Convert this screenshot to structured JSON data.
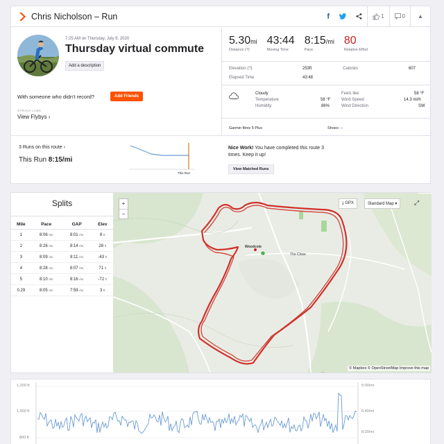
{
  "header": {
    "athlete_activity": "Chris Nicholson – Run",
    "like_count": "1",
    "comment_count": "0"
  },
  "activity": {
    "timestamp": "7:25 AM on Thursday, July 9, 2020",
    "title": "Thursday virtual commute",
    "add_description_label": "Add a description",
    "with_someone_text": "With someone who didn't record?",
    "add_friends_label": "Add Friends",
    "strava_labs": "STRAVA LABS",
    "view_flybys": "View Flybys"
  },
  "stats": {
    "distance": {
      "value": "5.30",
      "unit": "mi",
      "label": "Distance (?)"
    },
    "moving_time": {
      "value": "43:44",
      "label": "Moving Time"
    },
    "pace": {
      "value": "8:15",
      "unit": "/mi",
      "label": "Pace"
    },
    "relative_effort": {
      "value": "80",
      "label": "Relative Effort"
    },
    "elevation_label": "Elevation (?)",
    "elevation_value": "253ft",
    "calories_label": "Calories",
    "calories_value": "607",
    "elapsed_label": "Elapsed Time",
    "elapsed_value": "43:48"
  },
  "weather": {
    "condition": "Cloudy",
    "temperature_label": "Temperature",
    "temperature_value": "58 °F",
    "humidity_label": "Humidity",
    "humidity_value": "86%",
    "feels_like_label": "Feels like",
    "feels_like_value": "58 °F",
    "wind_speed_label": "Wind Speed",
    "wind_speed_value": "14.3 mi/h",
    "wind_direction_label": "Wind Direction",
    "wind_direction_value": "SW"
  },
  "gear": {
    "device": "Garmin fēnix 5 Plus",
    "shoes": "Shoes: --"
  },
  "route": {
    "runs_on_route": "3 Runs on this route",
    "this_run_label": "This Run",
    "this_run_pace": "8:15/mi",
    "this_run_marker": "This Run",
    "nice_work_bold": "Nice Work!",
    "nice_work_text": " You have completed this route 3 times. Keep it up!",
    "view_matched_label": "View Matched Runs"
  },
  "splits": {
    "title": "Splits",
    "columns": [
      "Mile",
      "Pace",
      "GAP",
      "Elev"
    ],
    "rows": [
      {
        "mile": "1",
        "pace": "8:06",
        "gap": "8:01",
        "elev": "8"
      },
      {
        "mile": "2",
        "pace": "8:26",
        "gap": "8:14",
        "elev": "28"
      },
      {
        "mile": "3",
        "pace": "8:09",
        "gap": "8:11",
        "elev": "-43"
      },
      {
        "mile": "4",
        "pace": "8:28",
        "gap": "8:07",
        "elev": "71"
      },
      {
        "mile": "5",
        "pace": "8:10",
        "gap": "8:16",
        "elev": "-72"
      },
      {
        "mile": "0.29",
        "pace": "8:05",
        "gap": "7:59",
        "elev": "3"
      }
    ],
    "pace_unit": "/mi",
    "elev_unit": "ft"
  },
  "map": {
    "gpx_label": "GPX",
    "style_label": "Standard Map",
    "attribution": "© Mapbox © OpenStreetMap Improve this map",
    "place_woodcote": "Woodcote",
    "place_close": "The Close",
    "route_color": "#d0302a"
  },
  "elevation": {
    "y_left": [
      "1,200 ft",
      "1,000 ft",
      "800 ft"
    ],
    "y_right": [
      "5:00/mi",
      "6:40/mi",
      "8:20/mi"
    ],
    "line_color": "#6a9bd1"
  },
  "colors": {
    "brand": "#fc5200",
    "effort": "#c91e1e"
  }
}
